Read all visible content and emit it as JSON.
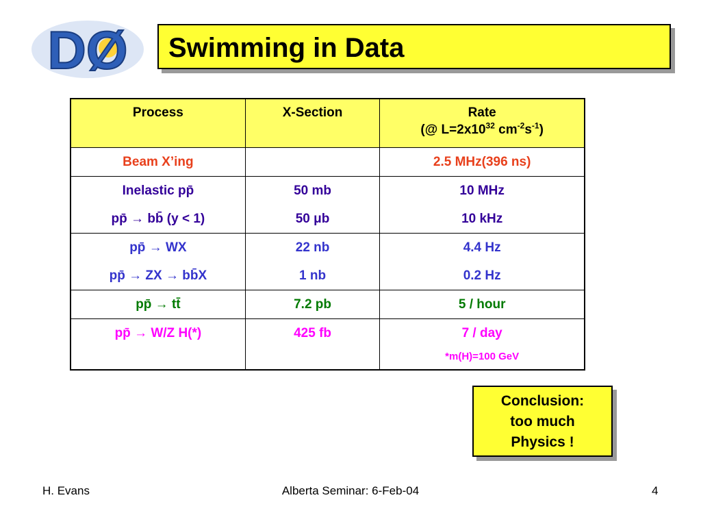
{
  "logo": "DØ",
  "title": "Swimming in Data",
  "table": {
    "header": [
      "Process",
      "X-Section",
      "Rate"
    ],
    "rate_unit": [
      "(@ L=2x10",
      "32",
      " cm",
      "-2",
      "s",
      "-1",
      ")"
    ],
    "rows": [
      {
        "process": [
          "Beam X’ing"
        ],
        "xsection": [],
        "rate": [
          "2.5 MHz(396 ns)"
        ]
      },
      {
        "process": [
          "Inelastic  pp̄",
          "pp̄ → bb̄ (y < 1)"
        ],
        "xsection": [
          "50 mb",
          "50 μb"
        ],
        "rate": [
          "10 MHz",
          "10 kHz"
        ]
      },
      {
        "process": [
          "pp̄ → WX",
          "pp̄ → ZX → bb̄X"
        ],
        "xsection": [
          "22 nb",
          "1 nb"
        ],
        "rate": [
          "4.4 Hz",
          "0.2 Hz"
        ]
      },
      {
        "process": [
          "pp̄ → tt̄"
        ],
        "xsection": [
          "7.2 pb"
        ],
        "rate": [
          "5 / hour"
        ]
      },
      {
        "process": [
          "pp̄ → W/Z H(*)"
        ],
        "xsection": [
          "425 fb"
        ],
        "rate": [
          "7 / day",
          "*m(H)=100 GeV"
        ]
      }
    ]
  },
  "conclusion": [
    "Conclusion:",
    "too much",
    "Physics !"
  ],
  "footer": {
    "left": "H. Evans",
    "center": "Alberta Seminar: 6-Feb-04",
    "right": "4"
  }
}
